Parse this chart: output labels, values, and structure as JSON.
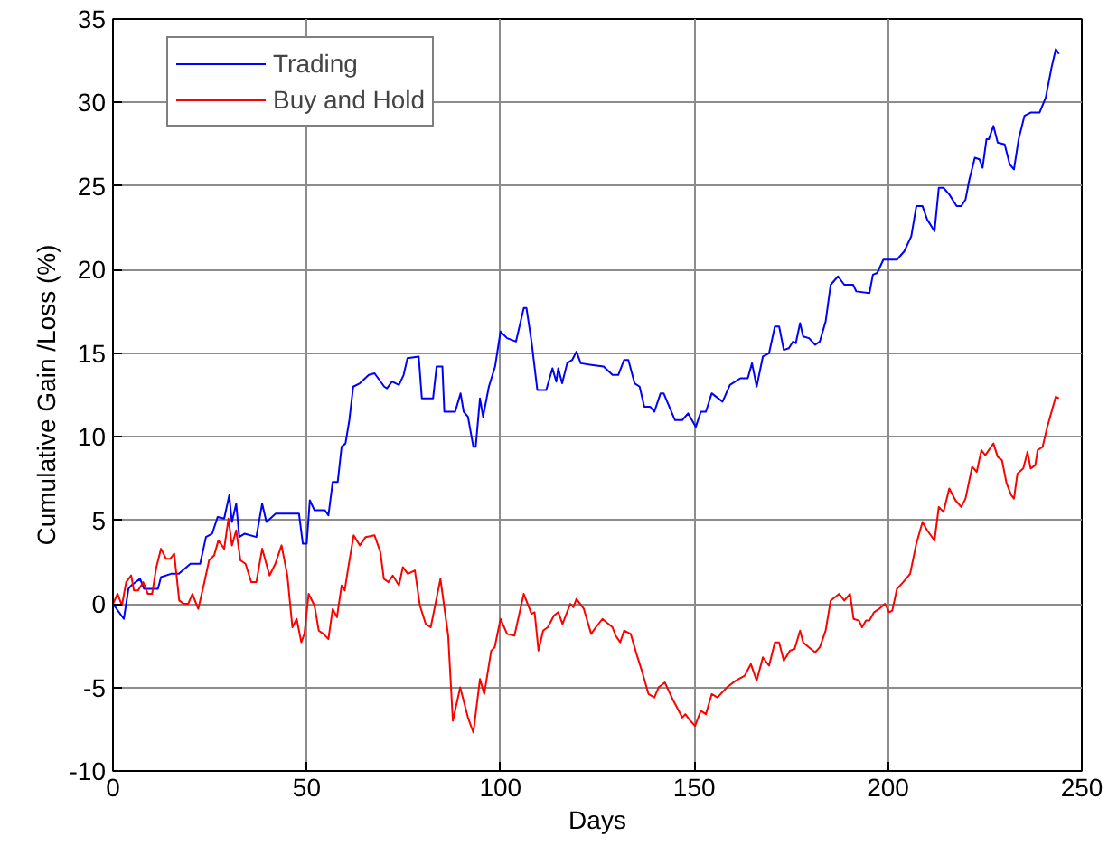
{
  "chart_data": {
    "type": "line",
    "xlabel": "Days",
    "ylabel": "Cumulative Gain /Loss (%)",
    "xlim": [
      0,
      250
    ],
    "xticks": [
      0,
      50,
      100,
      150,
      200,
      250
    ],
    "ylim": [
      -10,
      35
    ],
    "yticks": [
      -10,
      -5,
      0,
      5,
      10,
      15,
      20,
      25,
      30,
      35
    ],
    "grid": true,
    "legend": "top left",
    "series": [
      {
        "name": "Trading",
        "color": "#0000ff",
        "x": [
          0,
          2.8,
          4,
          4.7,
          7,
          8,
          11.6,
          12.4,
          15,
          17,
          20,
          22.5,
          24,
          25.6,
          27,
          28.7,
          30,
          30.7,
          31.8,
          32.6,
          34,
          37,
          38.5,
          39.6,
          42,
          48,
          49,
          50,
          50.8,
          52,
          54.7,
          55.6,
          56.7,
          58,
          59,
          60,
          61,
          62,
          63.7,
          66,
          67.5,
          70,
          70.7,
          72,
          73.8,
          75,
          76,
          78.9,
          79.7,
          82.6,
          83.5,
          85,
          85.5,
          88.3,
          89.7,
          90.5,
          91.6,
          93,
          93.6,
          94.7,
          95.5,
          97,
          98.6,
          100,
          101.7,
          104,
          106,
          106.7,
          108,
          109.5,
          111.8,
          113.4,
          114.4,
          114.9,
          115.9,
          117.2,
          118.5,
          119.6,
          120.7,
          123.5,
          126.6,
          128.9,
          130.4,
          131.9,
          133,
          134.6,
          135.9,
          137.1,
          138.6,
          139.7,
          141.3,
          142.1,
          145,
          146.9,
          148.4,
          150.4,
          151.7,
          153,
          154.5,
          157.3,
          159.2,
          161.9,
          163.8,
          164.9,
          166.1,
          167.7,
          169.3,
          170.8,
          171.9,
          173.1,
          174.4,
          175.5,
          176.2,
          177.3,
          178.1,
          179.6,
          181.2,
          182.4,
          183.9,
          185.2,
          187.1,
          188.7,
          191,
          191.8,
          195.2,
          196.1,
          197.2,
          198.8,
          202.3,
          204.2,
          206,
          207.3,
          208.9,
          210.1,
          212,
          213.1,
          214.3,
          215.8,
          217.7,
          218.9,
          220,
          221,
          222.4,
          223.6,
          224.4,
          225.4,
          226,
          227.2,
          228.3,
          230.1,
          231.4,
          232.5,
          233.7,
          235.2,
          236.8,
          239.1,
          240.7,
          242.2,
          243.3,
          244.1
        ],
        "values": [
          0,
          -0.9,
          0.9,
          1.1,
          1.5,
          0.9,
          0.9,
          1.6,
          1.8,
          1.8,
          2.4,
          2.4,
          4.0,
          4.2,
          5.2,
          5.1,
          6.5,
          4.9,
          6.0,
          4.0,
          4.2,
          4.0,
          6.0,
          4.9,
          5.4,
          5.4,
          3.6,
          3.6,
          6.2,
          5.6,
          5.6,
          5.3,
          7.3,
          7.3,
          9.4,
          9.6,
          11.0,
          13.0,
          13.2,
          13.7,
          13.8,
          13.0,
          12.9,
          13.3,
          13.1,
          13.7,
          14.7,
          14.8,
          12.3,
          12.3,
          14.2,
          14.2,
          11.5,
          11.5,
          12.6,
          11.5,
          11.2,
          9.4,
          9.4,
          12.3,
          11.2,
          13.0,
          14.2,
          16.3,
          15.9,
          15.7,
          17.7,
          17.7,
          15.7,
          12.8,
          12.8,
          14.1,
          13.3,
          14.1,
          13.2,
          14.4,
          14.6,
          15.1,
          14.4,
          14.3,
          14.2,
          13.7,
          13.7,
          14.6,
          14.6,
          13.2,
          13.0,
          11.8,
          11.8,
          11.5,
          12.6,
          12.6,
          11.0,
          11.0,
          11.4,
          10.6,
          11.5,
          11.5,
          12.6,
          12.1,
          13.1,
          13.5,
          13.5,
          14.4,
          13.0,
          14.8,
          15.0,
          16.6,
          16.6,
          15.2,
          15.3,
          15.7,
          15.6,
          16.8,
          16.0,
          15.9,
          15.5,
          15.7,
          16.9,
          19.1,
          19.6,
          19.1,
          19.1,
          18.7,
          18.6,
          19.7,
          19.8,
          20.6,
          20.6,
          21.1,
          22.0,
          23.8,
          23.8,
          23.0,
          22.3,
          24.9,
          24.9,
          24.5,
          23.8,
          23.8,
          24.2,
          25.4,
          26.7,
          26.6,
          26.1,
          27.8,
          27.8,
          28.6,
          27.6,
          27.5,
          26.3,
          26.0,
          27.8,
          29.2,
          29.4,
          29.4,
          30.3,
          32.1,
          33.2,
          32.9
        ]
      },
      {
        "name": "Buy and Hold",
        "color": "#ff0000",
        "x": [
          0,
          1.2,
          2.3,
          3.4,
          4.7,
          5.4,
          6.5,
          7.8,
          9,
          10.1,
          11.2,
          12.4,
          13.7,
          14.8,
          15.8,
          17.1,
          18.3,
          19.4,
          20.5,
          22,
          23.6,
          24.8,
          26.1,
          27.2,
          28.7,
          29.8,
          30.7,
          31.8,
          32.9,
          34.2,
          35.7,
          37,
          38.5,
          40.4,
          41.9,
          43.5,
          45,
          46.3,
          47.4,
          48.6,
          49.4,
          50.5,
          52,
          53.1,
          54.3,
          55.6,
          56.7,
          57.8,
          59,
          59.8,
          60.6,
          62.1,
          63.7,
          65.2,
          67.5,
          69,
          69.9,
          71.1,
          72.2,
          73.8,
          74.8,
          76.1,
          77.9,
          79.2,
          80.7,
          82,
          84.5,
          86.5,
          87.7,
          89.6,
          91.6,
          93,
          94.7,
          95.8,
          97.6,
          98.5,
          100,
          101.7,
          103.6,
          106,
          108,
          108.8,
          109.8,
          111,
          112.2,
          113.8,
          114.9,
          116,
          118,
          118.8,
          119.6,
          121.5,
          123.4,
          124.6,
          126.3,
          128.9,
          129.7,
          130.9,
          131.9,
          133.6,
          135.1,
          136.6,
          138.2,
          139.7,
          140.8,
          142.4,
          144.4,
          146.9,
          147.7,
          149,
          150.2,
          151.7,
          153,
          154.5,
          156,
          158.4,
          160.7,
          163,
          164.6,
          166.1,
          167.7,
          169.3,
          170.8,
          171.9,
          173.1,
          174.7,
          175.9,
          177.3,
          178.1,
          179.6,
          181.2,
          182.4,
          183.9,
          185.2,
          186.3,
          187.4,
          188.7,
          190.2,
          191.1,
          192.5,
          193.3,
          194.3,
          195.2,
          196.4,
          197.7,
          199.2,
          200.3,
          201.1,
          202.3,
          203.9,
          205.7,
          207.3,
          208.9,
          210.1,
          212,
          213.1,
          214.3,
          215.8,
          217.4,
          218.9,
          220,
          221.7,
          222.9,
          224.1,
          225.1,
          227.2,
          228.3,
          229.4,
          230.6,
          231.8,
          232.5,
          233.4,
          234.9,
          236,
          236.8,
          238,
          238.6,
          239.9,
          241,
          242.2,
          243.3,
          244.1
        ],
        "values": [
          0,
          0.6,
          -0.1,
          1.3,
          1.7,
          0.8,
          0.8,
          1.3,
          0.6,
          0.6,
          2.2,
          3.3,
          2.7,
          2.7,
          3.0,
          0.2,
          0,
          0,
          0.6,
          -0.3,
          1.3,
          2.6,
          2.9,
          3.8,
          3.3,
          5.1,
          3.5,
          4.4,
          2.6,
          2.4,
          1.3,
          1.3,
          3.3,
          1.7,
          2.4,
          3.5,
          1.7,
          -1.4,
          -0.9,
          -2.3,
          -1.8,
          0.6,
          -0.1,
          -1.6,
          -1.8,
          -2.1,
          -0.3,
          -0.8,
          1.1,
          0.8,
          2.0,
          4.1,
          3.5,
          4.0,
          4.1,
          3.1,
          1.5,
          1.3,
          1.7,
          1.1,
          2.2,
          1.8,
          2.0,
          -0.1,
          -1.2,
          -1.4,
          1.5,
          -1.9,
          -7.0,
          -5.0,
          -6.8,
          -7.7,
          -4.5,
          -5.4,
          -2.8,
          -2.6,
          -0.9,
          -1.8,
          -1.9,
          0.6,
          -0.6,
          -0.5,
          -2.8,
          -1.6,
          -1.4,
          -0.7,
          -0.5,
          -1.2,
          0,
          -0.2,
          0.3,
          -0.3,
          -1.8,
          -1.4,
          -0.9,
          -1.4,
          -1.9,
          -2.3,
          -1.6,
          -1.8,
          -3.0,
          -4.1,
          -5.4,
          -5.6,
          -5.0,
          -4.7,
          -5.7,
          -6.8,
          -6.6,
          -7.0,
          -7.3,
          -6.4,
          -6.6,
          -5.4,
          -5.6,
          -5.0,
          -4.6,
          -4.3,
          -3.6,
          -4.6,
          -3.2,
          -3.7,
          -2.3,
          -2.3,
          -3.4,
          -2.8,
          -2.7,
          -1.6,
          -2.3,
          -2.6,
          -2.9,
          -2.6,
          -1.6,
          0.2,
          0.4,
          0.6,
          0.2,
          0.6,
          -0.9,
          -1.0,
          -1.4,
          -1.0,
          -1.0,
          -0.5,
          -0.3,
          0,
          -0.5,
          -0.4,
          0.9,
          1.3,
          1.8,
          3.6,
          4.9,
          4.4,
          3.8,
          5.8,
          5.5,
          6.9,
          6.2,
          5.8,
          6.3,
          8.2,
          7.9,
          9.2,
          8.9,
          9.6,
          8.8,
          8.6,
          7.2,
          6.5,
          6.3,
          7.8,
          8.1,
          9.1,
          8.1,
          8.3,
          9.2,
          9.4,
          10.5,
          11.5,
          12.4,
          12.3
        ]
      }
    ]
  }
}
